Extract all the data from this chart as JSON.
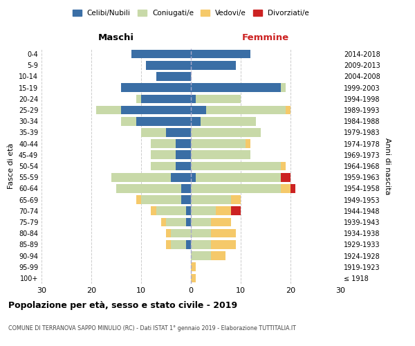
{
  "age_groups": [
    "100+",
    "95-99",
    "90-94",
    "85-89",
    "80-84",
    "75-79",
    "70-74",
    "65-69",
    "60-64",
    "55-59",
    "50-54",
    "45-49",
    "40-44",
    "35-39",
    "30-34",
    "25-29",
    "20-24",
    "15-19",
    "10-14",
    "5-9",
    "0-4"
  ],
  "birth_years": [
    "≤ 1918",
    "1919-1923",
    "1924-1928",
    "1929-1933",
    "1934-1938",
    "1939-1943",
    "1944-1948",
    "1949-1953",
    "1954-1958",
    "1959-1963",
    "1964-1968",
    "1969-1973",
    "1974-1978",
    "1979-1983",
    "1984-1988",
    "1989-1993",
    "1994-1998",
    "1999-2003",
    "2004-2008",
    "2009-2013",
    "2014-2018"
  ],
  "maschi": {
    "celibi": [
      0,
      0,
      0,
      1,
      0,
      1,
      1,
      2,
      2,
      4,
      3,
      3,
      3,
      5,
      11,
      14,
      10,
      14,
      7,
      9,
      12
    ],
    "coniugati": [
      0,
      0,
      0,
      3,
      4,
      4,
      6,
      8,
      13,
      12,
      5,
      5,
      5,
      5,
      3,
      5,
      1,
      0,
      0,
      0,
      0
    ],
    "vedovi": [
      0,
      0,
      0,
      1,
      1,
      1,
      1,
      1,
      0,
      0,
      0,
      0,
      0,
      0,
      0,
      0,
      0,
      0,
      0,
      0,
      0
    ],
    "divorziati": [
      0,
      0,
      0,
      0,
      0,
      0,
      0,
      0,
      0,
      0,
      0,
      0,
      0,
      0,
      0,
      0,
      0,
      0,
      0,
      0,
      0
    ]
  },
  "femmine": {
    "nubili": [
      0,
      0,
      0,
      0,
      0,
      0,
      0,
      0,
      0,
      1,
      0,
      0,
      0,
      0,
      2,
      3,
      1,
      18,
      0,
      9,
      12
    ],
    "coniugate": [
      0,
      0,
      4,
      4,
      4,
      4,
      5,
      8,
      18,
      17,
      18,
      12,
      11,
      14,
      11,
      16,
      9,
      1,
      0,
      0,
      0
    ],
    "vedove": [
      1,
      1,
      3,
      5,
      5,
      4,
      3,
      2,
      2,
      0,
      1,
      0,
      1,
      0,
      0,
      1,
      0,
      0,
      0,
      0,
      0
    ],
    "divorziate": [
      0,
      0,
      0,
      0,
      0,
      0,
      2,
      0,
      1,
      2,
      0,
      0,
      0,
      0,
      0,
      0,
      0,
      0,
      0,
      0,
      0
    ]
  },
  "colors": {
    "celibi_nubili": "#3A6EA5",
    "coniugati": "#C8D9A8",
    "vedovi": "#F5C96A",
    "divorziati": "#CC2222"
  },
  "title": "Popolazione per età, sesso e stato civile - 2019",
  "subtitle": "COMUNE DI TERRANOVA SAPPO MINULIO (RC) - Dati ISTAT 1° gennaio 2019 - Elaborazione TUTTITALIA.IT",
  "xlabel_left": "Maschi",
  "xlabel_right": "Femmine",
  "ylabel_left": "Fasce di età",
  "ylabel_right": "Anni di nascita",
  "xlim": 30,
  "legend_labels": [
    "Celibi/Nubili",
    "Coniugati/e",
    "Vedovi/e",
    "Divorziati/e"
  ],
  "background_color": "#FFFFFF",
  "grid_color": "#CCCCCC"
}
